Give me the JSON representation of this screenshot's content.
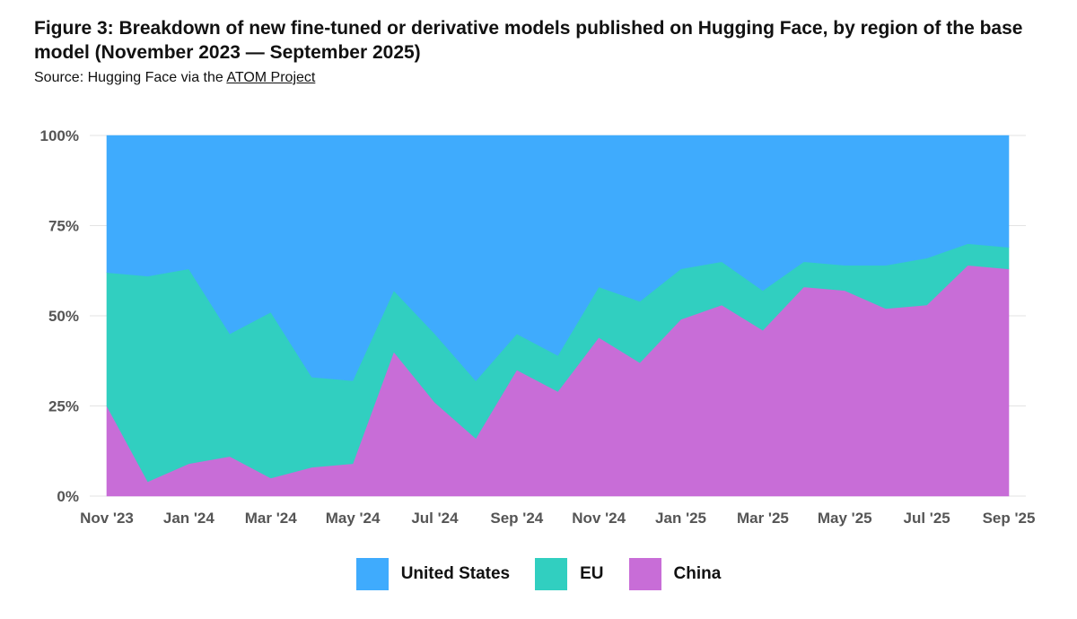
{
  "figure": {
    "title": "Figure 3: Breakdown of new fine-tuned or derivative models published on Hugging Face, by region of the base model (November 2023 — September 2025)",
    "source_prefix": "Source: Hugging Face via the ",
    "source_link": "ATOM Project"
  },
  "chart_data": {
    "type": "area",
    "stacked": true,
    "x": [
      "Nov '23",
      "Dec '23",
      "Jan '24",
      "Feb '24",
      "Mar '24",
      "Apr '24",
      "May '24",
      "Jun '24",
      "Jul '24",
      "Aug '24",
      "Sep '24",
      "Oct '24",
      "Nov '24",
      "Dec '24",
      "Jan '25",
      "Feb '25",
      "Mar '25",
      "Apr '25",
      "May '25",
      "Jun '25",
      "Jul '25",
      "Aug '25",
      "Sep '25"
    ],
    "x_tick_labels": [
      "Nov '23",
      "Jan '24",
      "Mar '24",
      "May '24",
      "Jul '24",
      "Sep '24",
      "Nov '24",
      "Jan '25",
      "Mar '25",
      "May '25",
      "Jul '25",
      "Sep '25"
    ],
    "y_tick_labels": [
      "0%",
      "25%",
      "50%",
      "75%",
      "100%"
    ],
    "ylim": [
      0,
      100
    ],
    "series": [
      {
        "name": "China",
        "color": "#c86dd7",
        "values": [
          25,
          4,
          9,
          11,
          5,
          8,
          9,
          40,
          26,
          16,
          35,
          29,
          44,
          37,
          49,
          53,
          46,
          58,
          57,
          52,
          53,
          64,
          63
        ]
      },
      {
        "name": "EU",
        "color": "#31cfc0",
        "values": [
          37,
          57,
          54,
          34,
          46,
          25,
          23,
          17,
          19,
          16,
          10,
          10,
          14,
          17,
          14,
          12,
          11,
          7,
          7,
          12,
          13,
          6,
          6
        ]
      },
      {
        "name": "United States",
        "color": "#3fabfd",
        "values": [
          38,
          39,
          37,
          55,
          49,
          67,
          68,
          43,
          55,
          68,
          55,
          61,
          42,
          46,
          37,
          35,
          43,
          35,
          36,
          36,
          34,
          30,
          31
        ]
      }
    ],
    "legend": [
      "United States",
      "EU",
      "China"
    ],
    "legend_position": "bottom-center",
    "grid": true
  }
}
